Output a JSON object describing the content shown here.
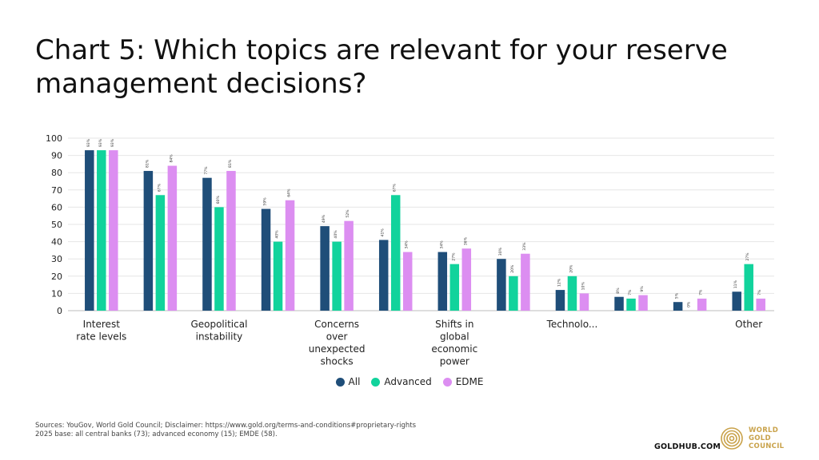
{
  "title": "Chart 5: Which topics are relevant for your reserve management decisions?",
  "colors": {
    "All": "#1f4e79",
    "Advanced": "#11d39c",
    "EDME": "#dc8ef1",
    "grid": "#e6e6e6",
    "gold": "#c9a24a"
  },
  "chart_data": {
    "type": "bar",
    "categories": [
      "Interest rate levels",
      "",
      "Geopolitical instability",
      "",
      "Concerns over unexpected shocks",
      "",
      "Shifts in global economic power",
      "",
      "Technolo...",
      "",
      "",
      "Other"
    ],
    "series": [
      {
        "name": "All",
        "values": [
          93,
          81,
          77,
          59,
          49,
          41,
          34,
          30,
          12,
          8,
          5,
          11
        ],
        "labels": [
          "93%",
          "81%",
          "77%",
          "59%",
          "49%",
          "41%",
          "34%",
          "30%",
          "12%",
          "8%",
          "5%",
          "11%"
        ]
      },
      {
        "name": "Advanced",
        "values": [
          93,
          67,
          60,
          40,
          40,
          67,
          27,
          20,
          20,
          7,
          0,
          27
        ],
        "labels": [
          "93%",
          "67%",
          "60%",
          "40%",
          "40%",
          "67%",
          "27%",
          "20%",
          "20%",
          "7%",
          "0%",
          "27%"
        ]
      },
      {
        "name": "EDME",
        "values": [
          93,
          84,
          81,
          64,
          52,
          34,
          36,
          33,
          10,
          9,
          7,
          7
        ],
        "labels": [
          "93%",
          "84%",
          "81%",
          "64%",
          "52%",
          "34%",
          "36%",
          "33%",
          "10%",
          "9%",
          "7%",
          "7%"
        ]
      }
    ],
    "ylim": [
      0,
      100
    ],
    "yticks": [
      0,
      10,
      20,
      30,
      40,
      50,
      60,
      70,
      80,
      90,
      100
    ],
    "grid": true,
    "legend": "bottom-center"
  },
  "footnote": {
    "line1": "Sources: YouGov, World Gold Council; Disclaimer: https://www.gold.org/terms-and-conditions#proprietary-rights",
    "line2": "2025 base: all central banks (73); advanced economy (15); EMDE (58)."
  },
  "footer": {
    "url": "GOLDHUB.COM",
    "logo_line1": "WORLD",
    "logo_line2": "GOLD",
    "logo_line3": "COUNCIL",
    "logo_icon": "gold-rings-icon"
  }
}
